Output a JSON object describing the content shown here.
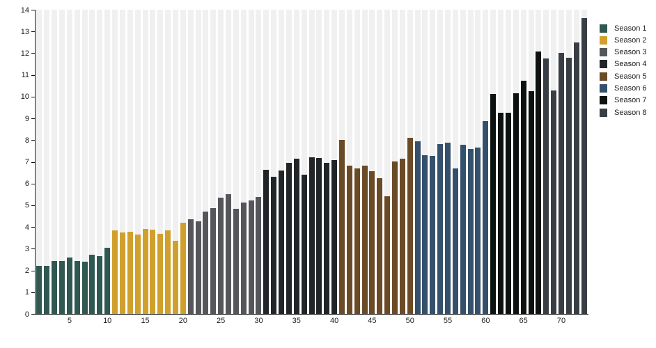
{
  "chart_data": {
    "type": "bar",
    "title": "",
    "xlabel": "",
    "ylabel": "",
    "x_unit": "episode",
    "x_range": [
      1,
      73
    ],
    "ylim": [
      0,
      14
    ],
    "y_ticks": [
      0,
      1,
      2,
      3,
      4,
      5,
      6,
      7,
      8,
      9,
      10,
      11,
      12,
      13,
      14
    ],
    "x_ticks": [
      5,
      10,
      15,
      20,
      25,
      30,
      35,
      40,
      45,
      50,
      55,
      60,
      65,
      70
    ],
    "grid": "off",
    "legend_position": "right",
    "plot_stripe_color": "#f0f0f0",
    "axis_color": "#111111",
    "tick_label_color": "#1a1a1a",
    "series": [
      {
        "name": "Season 1",
        "color": "#2f5853",
        "start_episode": 1,
        "values": [
          2.22,
          2.2,
          2.44,
          2.45,
          2.58,
          2.44,
          2.4,
          2.72,
          2.66,
          3.04
        ]
      },
      {
        "name": "Season 2",
        "color": "#d0a02d",
        "start_episode": 11,
        "values": [
          3.86,
          3.76,
          3.77,
          3.65,
          3.9,
          3.88,
          3.69,
          3.86,
          3.38,
          4.2
        ]
      },
      {
        "name": "Season 3",
        "color": "#54565a",
        "start_episode": 21,
        "values": [
          4.37,
          4.27,
          4.72,
          4.87,
          5.35,
          5.5,
          4.84,
          5.13,
          5.22,
          5.39
        ]
      },
      {
        "name": "Season 4",
        "color": "#212527",
        "start_episode": 31,
        "values": [
          6.64,
          6.31,
          6.59,
          6.95,
          7.16,
          6.4,
          7.2,
          7.17,
          6.95,
          7.09
        ]
      },
      {
        "name": "Season 5",
        "color": "#6b4a26",
        "start_episode": 41,
        "values": [
          8.0,
          6.81,
          6.71,
          6.82,
          6.56,
          6.24,
          5.4,
          7.01,
          7.14,
          8.11
        ]
      },
      {
        "name": "Season 6",
        "color": "#35506b",
        "start_episode": 51,
        "values": [
          7.94,
          7.29,
          7.28,
          7.82,
          7.89,
          6.71,
          7.8,
          7.6,
          7.66,
          8.89
        ]
      },
      {
        "name": "Season 7",
        "color": "#0c1210",
        "start_episode": 61,
        "values": [
          10.11,
          9.27,
          9.25,
          10.17,
          10.72,
          10.24,
          12.07
        ]
      },
      {
        "name": "Season 8",
        "color": "#393e45",
        "start_episode": 68,
        "values": [
          11.76,
          10.29,
          12.02,
          11.8,
          12.48,
          13.61
        ]
      }
    ]
  }
}
